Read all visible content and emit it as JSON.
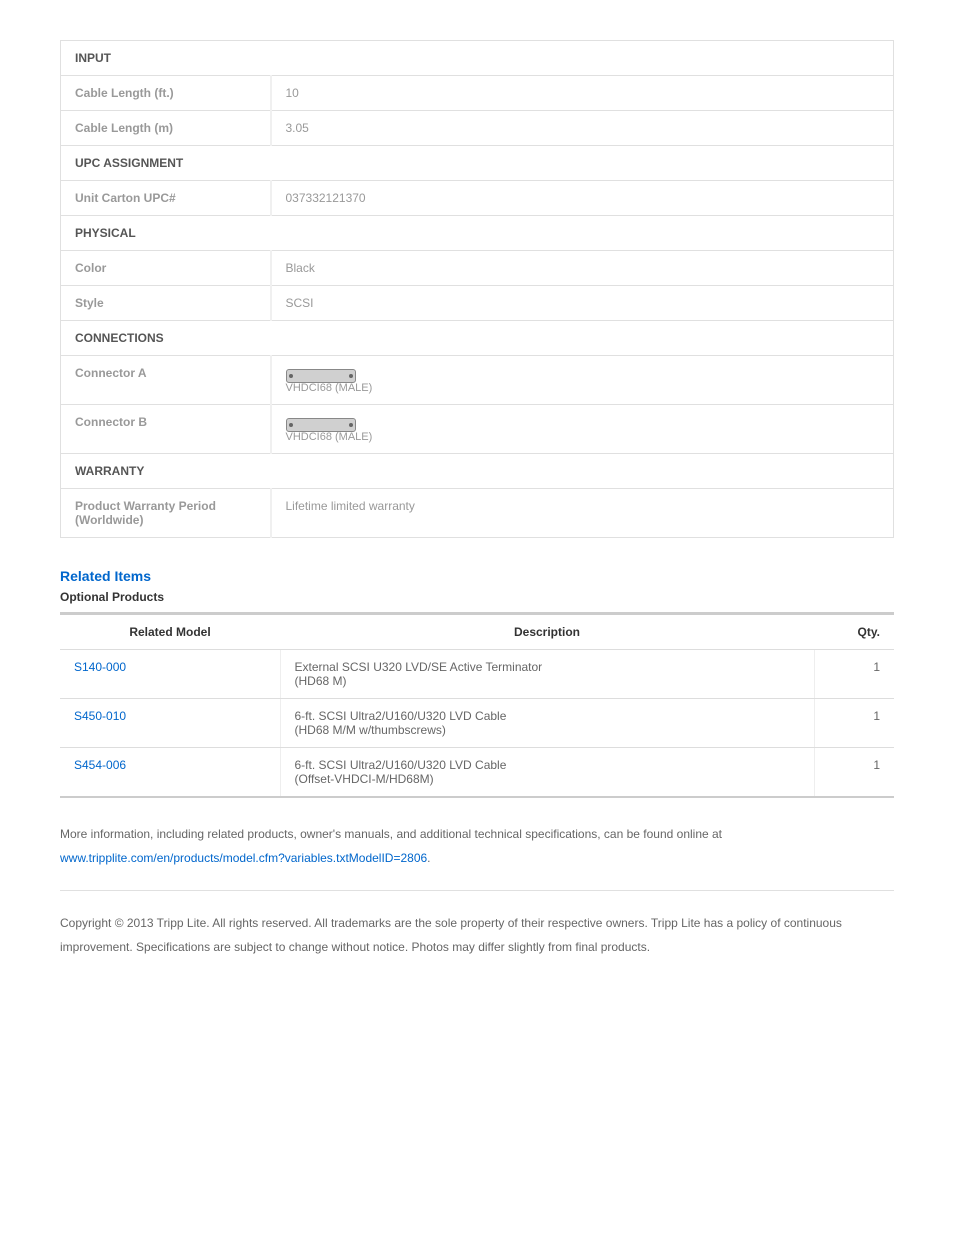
{
  "specs": {
    "sections": [
      {
        "title": "INPUT",
        "rows": [
          {
            "label": "Cable Length (ft.)",
            "value": "10"
          },
          {
            "label": "Cable Length (m)",
            "value": "3.05"
          }
        ]
      },
      {
        "title": "UPC ASSIGNMENT",
        "rows": [
          {
            "label": "Unit Carton UPC#",
            "value": "037332121370"
          }
        ]
      },
      {
        "title": "PHYSICAL",
        "rows": [
          {
            "label": "Color",
            "value": "Black"
          },
          {
            "label": "Style",
            "value": "SCSI"
          }
        ]
      },
      {
        "title": "CONNECTIONS",
        "rows": [
          {
            "label": "Connector A",
            "value": "VHDCI68 (MALE)",
            "is_connector": true
          },
          {
            "label": "Connector B",
            "value": "VHDCI68 (MALE)",
            "is_connector": true
          }
        ]
      },
      {
        "title": "WARRANTY",
        "rows": [
          {
            "label": "Product Warranty Period (Worldwide)",
            "value": "Lifetime limited warranty"
          }
        ]
      }
    ]
  },
  "related": {
    "heading": "Related Items",
    "sub_heading": "Optional Products",
    "columns": {
      "model": "Related Model",
      "description": "Description",
      "qty": "Qty."
    },
    "rows": [
      {
        "model": "S140-000",
        "description": "External SCSI U320 LVD/SE Active Terminator\n(HD68 M)",
        "qty": "1"
      },
      {
        "model": "S450-010",
        "description": "6-ft. SCSI Ultra2/U160/U320 LVD Cable\n(HD68 M/M w/thumbscrews)",
        "qty": "1"
      },
      {
        "model": "S454-006",
        "description": "6-ft. SCSI Ultra2/U160/U320 LVD Cable\n(Offset-VHDCI-M/HD68M)",
        "qty": "1"
      }
    ]
  },
  "footer": {
    "more_info_prefix": "More information, including related products, owner's manuals, and additional technical specifications, can be found online at",
    "more_info_link": "www.tripplite.com/en/products/model.cfm?variables.txtModelID=2806",
    "copyright": "Copyright © 2013 Tripp Lite. All rights reserved. All trademarks are the sole property of their respective owners. Tripp Lite has a policy of continuous improvement. Specifications are subject to change without notice. Photos may differ slightly from final products."
  },
  "styling": {
    "link_color": "#0066cc",
    "text_muted": "#999999",
    "border_color": "#e0e0e0",
    "background": "#ffffff",
    "font_family": "Arial, Helvetica, sans-serif"
  }
}
